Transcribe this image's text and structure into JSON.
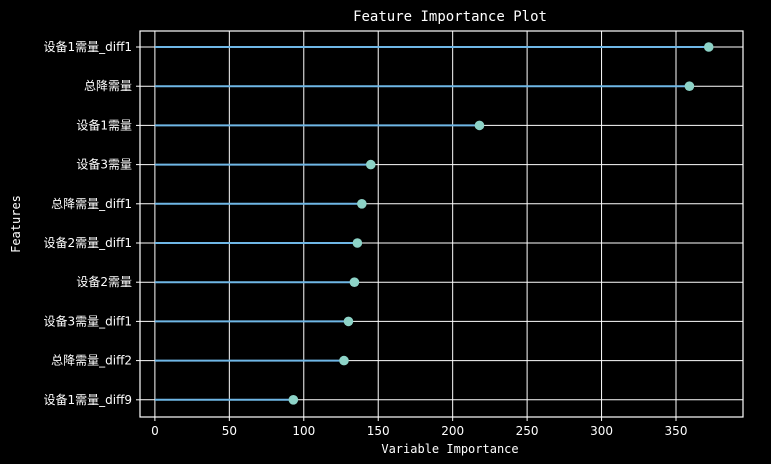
{
  "chart_data": {
    "type": "lollipop",
    "title": "Feature Importance Plot",
    "xlabel": "Variable Importance",
    "ylabel": "Features",
    "xlim": [
      -10,
      395
    ],
    "xticks": [
      0,
      50,
      100,
      150,
      200,
      250,
      300,
      350
    ],
    "grid": true,
    "categories": [
      "设备1需量_diff1",
      "总降需量",
      "设备1需量",
      "设备3需量",
      "总降需量_diff1",
      "设备2需量_diff1",
      "设备2需量",
      "设备3需量_diff1",
      "总降需量_diff2",
      "设备1需量_diff9"
    ],
    "values": [
      372,
      359,
      218,
      145,
      139,
      136,
      134,
      130,
      127,
      93
    ],
    "colors": {
      "background": "#000000",
      "line": "#6fb7e6",
      "marker": "#8dd3c7",
      "grid": "#ffffff",
      "text": "#ffffff"
    }
  }
}
